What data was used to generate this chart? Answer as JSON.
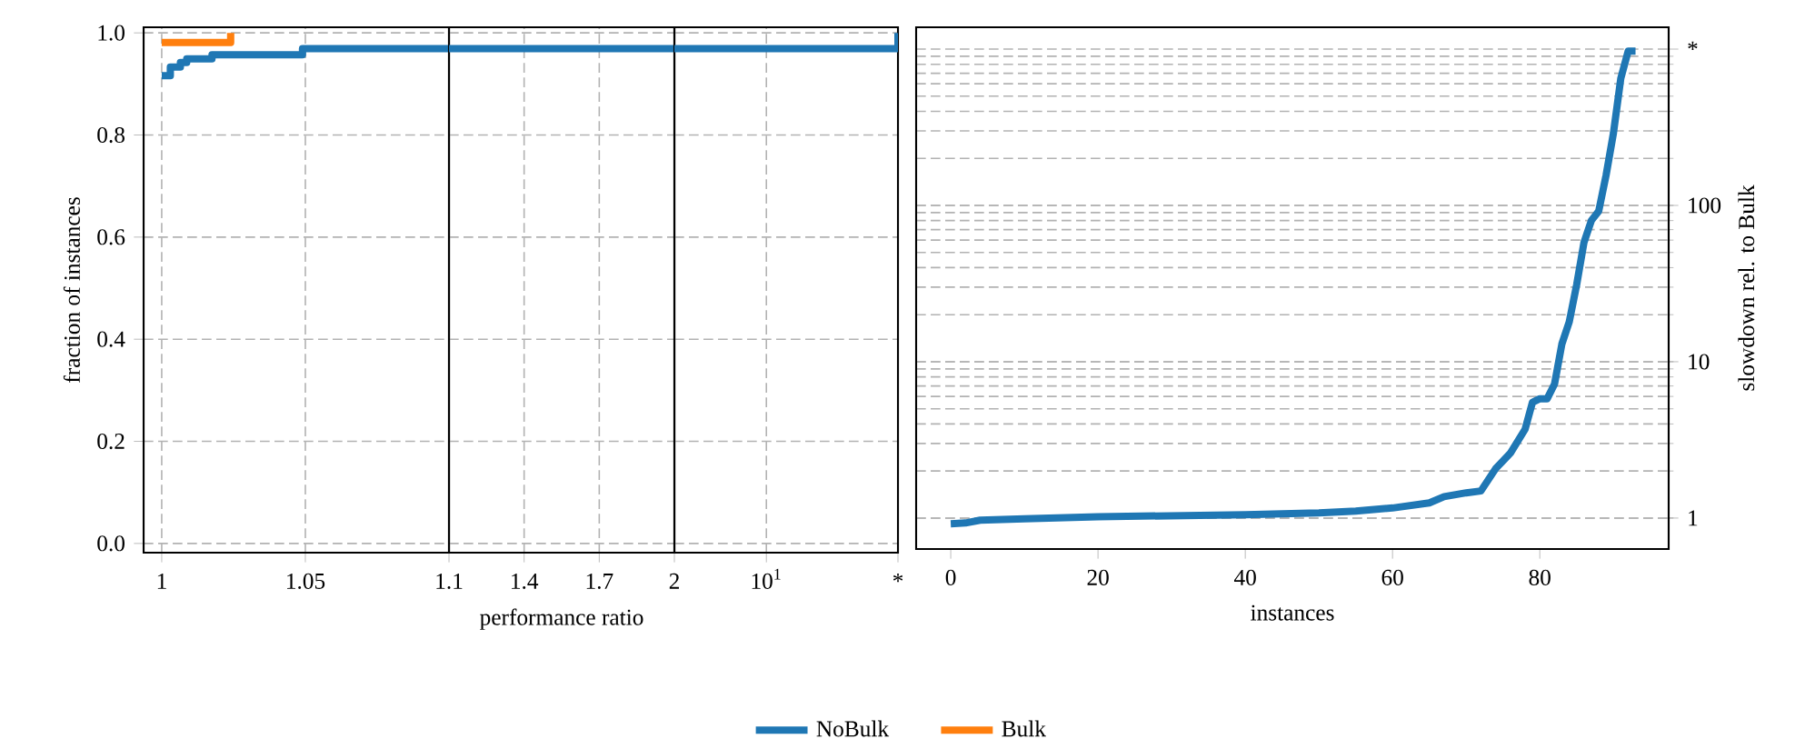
{
  "chart_data": [
    {
      "type": "step",
      "ylabel": "fraction of instances",
      "series": [
        {
          "name": "NoBulk",
          "color": "#1f77b4",
          "x": [
            1,
            1.003,
            1.0065,
            1.0087,
            1.0175,
            1.049,
            1.1
          ],
          "values": [
            0.916,
            0.933,
            0.942,
            0.949,
            0.957,
            0.969,
            0.969
          ]
        },
        {
          "name": "Bulk",
          "color": "#ff7f0e",
          "x": [
            1,
            1.024
          ],
          "values": [
            0.981,
            1.0
          ]
        }
      ],
      "xlim": [
        0.9937,
        1.1
      ],
      "ylim": [
        -0.018,
        1.011
      ],
      "xticks": [
        1,
        1.05
      ],
      "yticks": [
        {
          "value": 0,
          "label": "0.0"
        },
        {
          "value": 0.2,
          "label": "0.2"
        },
        {
          "value": 0.4,
          "label": "0.4"
        },
        {
          "value": 0.6,
          "label": "0.6"
        },
        {
          "value": 0.8,
          "label": "0.8"
        },
        {
          "value": 1,
          "label": "1.0"
        }
      ],
      "grid": true,
      "legend": "bottom"
    },
    {
      "type": "step",
      "xlabel": "performance ratio",
      "series": [
        {
          "color": "#1f77b4",
          "x": [
            1.1,
            2
          ],
          "values": [
            0.969,
            0.969
          ]
        }
      ],
      "xlim": [
        1.1,
        2
      ],
      "ylim": [
        -0.018,
        1.011
      ],
      "xticks": [
        1.1,
        1.4,
        1.7
      ],
      "yticks": [
        0,
        0.2,
        0.4,
        0.6,
        0.8,
        1
      ],
      "grid": true,
      "tick_labels": "x"
    },
    {
      "type": "step",
      "log": "x",
      "series": [
        {
          "color": "#1f77b4",
          "x": [
            2,
            100
          ],
          "values": [
            0.969,
            1.0
          ]
        }
      ],
      "xlim": [
        2,
        100
      ],
      "ylim": [
        -0.018,
        1.011
      ],
      "xticks": [
        2,
        {
          "value": 10,
          "label": "10$^{1}$"
        },
        {
          "value": 100,
          "label": "*"
        }
      ],
      "yticks": [
        0,
        0.2,
        0.4,
        0.6,
        0.8,
        1
      ],
      "grid": true,
      "tick_labels": "x"
    },
    {
      "type": "line",
      "xlabel": "instances",
      "ylabel": "slowdown rel. to Bulk",
      "log": "y",
      "series": [
        {
          "color": "#1f77b4",
          "x": [
            0,
            2,
            4,
            10,
            20,
            40,
            50,
            55,
            60,
            65,
            67,
            70,
            72,
            74,
            76,
            78,
            79,
            80,
            81,
            82,
            83,
            84,
            85,
            86,
            87,
            88,
            89,
            90,
            91,
            92,
            93
          ],
          "values": [
            0.92,
            0.93,
            0.97,
            0.99,
            1.02,
            1.05,
            1.08,
            1.11,
            1.16,
            1.25,
            1.37,
            1.45,
            1.49,
            2.07,
            2.6,
            3.7,
            5.5,
            5.8,
            5.8,
            7.2,
            13,
            18,
            31,
            58,
            80,
            92,
            156,
            290,
            650,
            970,
            970
          ]
        }
      ],
      "xlim": [
        -4.7,
        97.5
      ],
      "ylim": [
        0.634,
        1380
      ],
      "xticks": [
        0,
        20,
        40,
        60,
        80
      ],
      "yticks": [
        1,
        10,
        100,
        {
          "value": 1000,
          "label": "*"
        }
      ],
      "grid": "y"
    }
  ]
}
